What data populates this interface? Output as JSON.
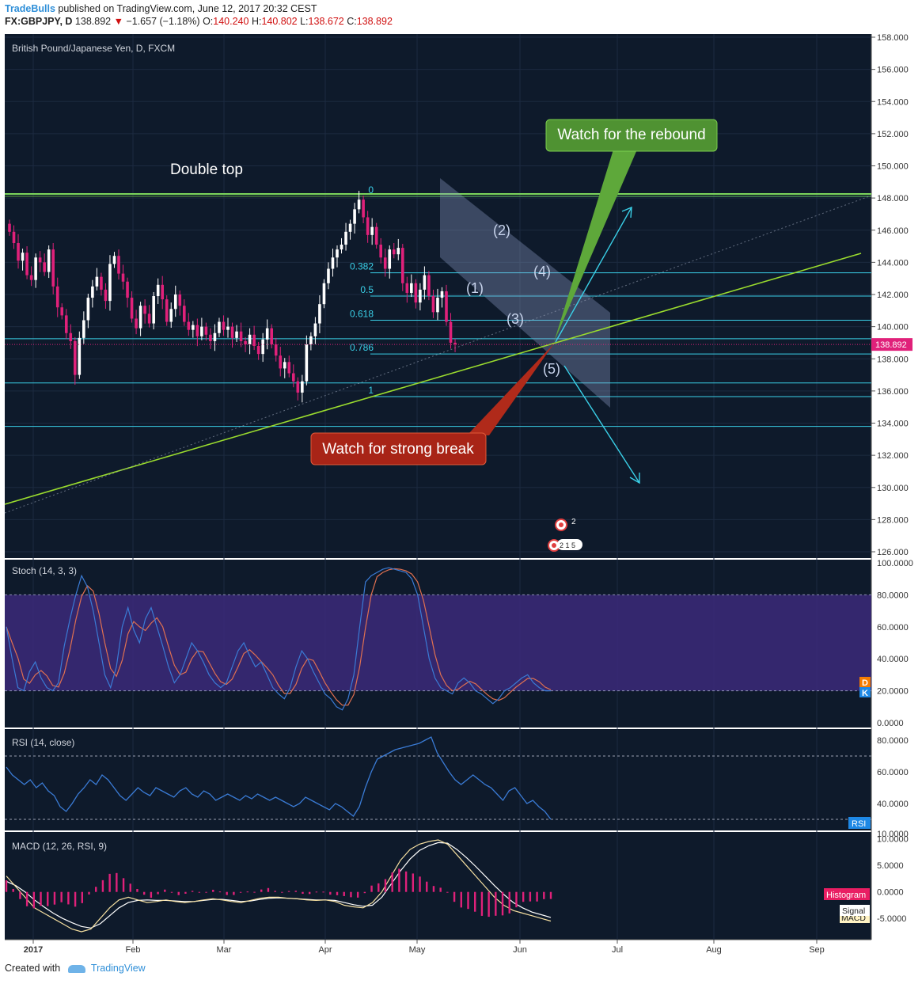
{
  "header": {
    "publisher": "TradeBulls",
    "published_text": "published on TradingView.com, June 12, 2017 20:32 CEST",
    "symbol_line": "FX:GBPJPY, D",
    "last": "138.892",
    "change": "−1.657 (−1.18%)",
    "open": "140.240",
    "high": "140.802",
    "low": "138.672",
    "close": "138.892",
    "o_label": "O:",
    "h_label": "H:",
    "l_label": "L:",
    "c_label": "C:"
  },
  "footer": {
    "created_with": "Created with",
    "tv": "TradingView"
  },
  "colors": {
    "bg": "#0e1a2b",
    "bull": "#ffffff",
    "bear": "#e0217a",
    "fib": "#3ad0e8",
    "green": "#9adb2e",
    "stoch_k": "#3a7bd5",
    "stoch_d": "#e07050",
    "band": "#3b2a7a"
  },
  "chart_data": [
    {
      "type": "candlestick",
      "title": "British Pound/Japanese Yen, D, FXCM",
      "ylim": [
        126,
        158
      ],
      "yticks": [
        "158.000",
        "156.000",
        "154.000",
        "152.000",
        "150.000",
        "148.000",
        "146.000",
        "144.000",
        "142.000",
        "140.000",
        "138.000",
        "136.000",
        "134.000",
        "132.000",
        "130.000",
        "128.000",
        "126.000"
      ],
      "x_tick_labels": [
        "2017",
        "Feb",
        "Mar",
        "Apr",
        "May",
        "Jun",
        "Jul",
        "Aug",
        "Sep"
      ],
      "last_price": "138.892",
      "fib_levels": [
        {
          "label": "0",
          "value": 148.1
        },
        {
          "label": "0.382",
          "value": 143.35
        },
        {
          "label": "0.5",
          "value": 141.9
        },
        {
          "label": "0.618",
          "value": 140.4
        },
        {
          "label": "0.786",
          "value": 138.3
        },
        {
          "label": "1",
          "value": 135.65
        }
      ],
      "extra_levels": [
        139.25,
        136.5,
        133.8
      ],
      "resistance": 148.25,
      "annotations": {
        "double_top": "Double top",
        "rebound": "Watch for the rebound",
        "break": "Watch for strong break",
        "waves": [
          "(1)",
          "(2)",
          "(3)",
          "(4)",
          "(5)"
        ]
      }
    },
    {
      "type": "line",
      "title": "Stoch (14, 3, 3)",
      "ylim": [
        0,
        100
      ],
      "yticks": [
        "100.0000",
        "80.0000",
        "60.0000",
        "40.0000",
        "20.0000",
        "0.0000"
      ],
      "band": [
        20,
        80
      ],
      "legend": [
        "D",
        "K"
      ]
    },
    {
      "type": "line",
      "title": "RSI (14, close)",
      "ylim": [
        20,
        85
      ],
      "yticks": [
        "80.0000",
        "60.0000",
        "40.0000",
        "10.0000"
      ],
      "band": [
        30,
        70
      ],
      "legend": [
        "RSI"
      ]
    },
    {
      "type": "line",
      "title": "MACD (12, 26, RSI, 9)",
      "ylim": [
        -9,
        11
      ],
      "yticks": [
        "10.0000",
        "5.0000",
        "0.0000",
        "-5.0000"
      ],
      "legend": [
        "Histogram",
        "Signal",
        "MACD"
      ]
    }
  ]
}
